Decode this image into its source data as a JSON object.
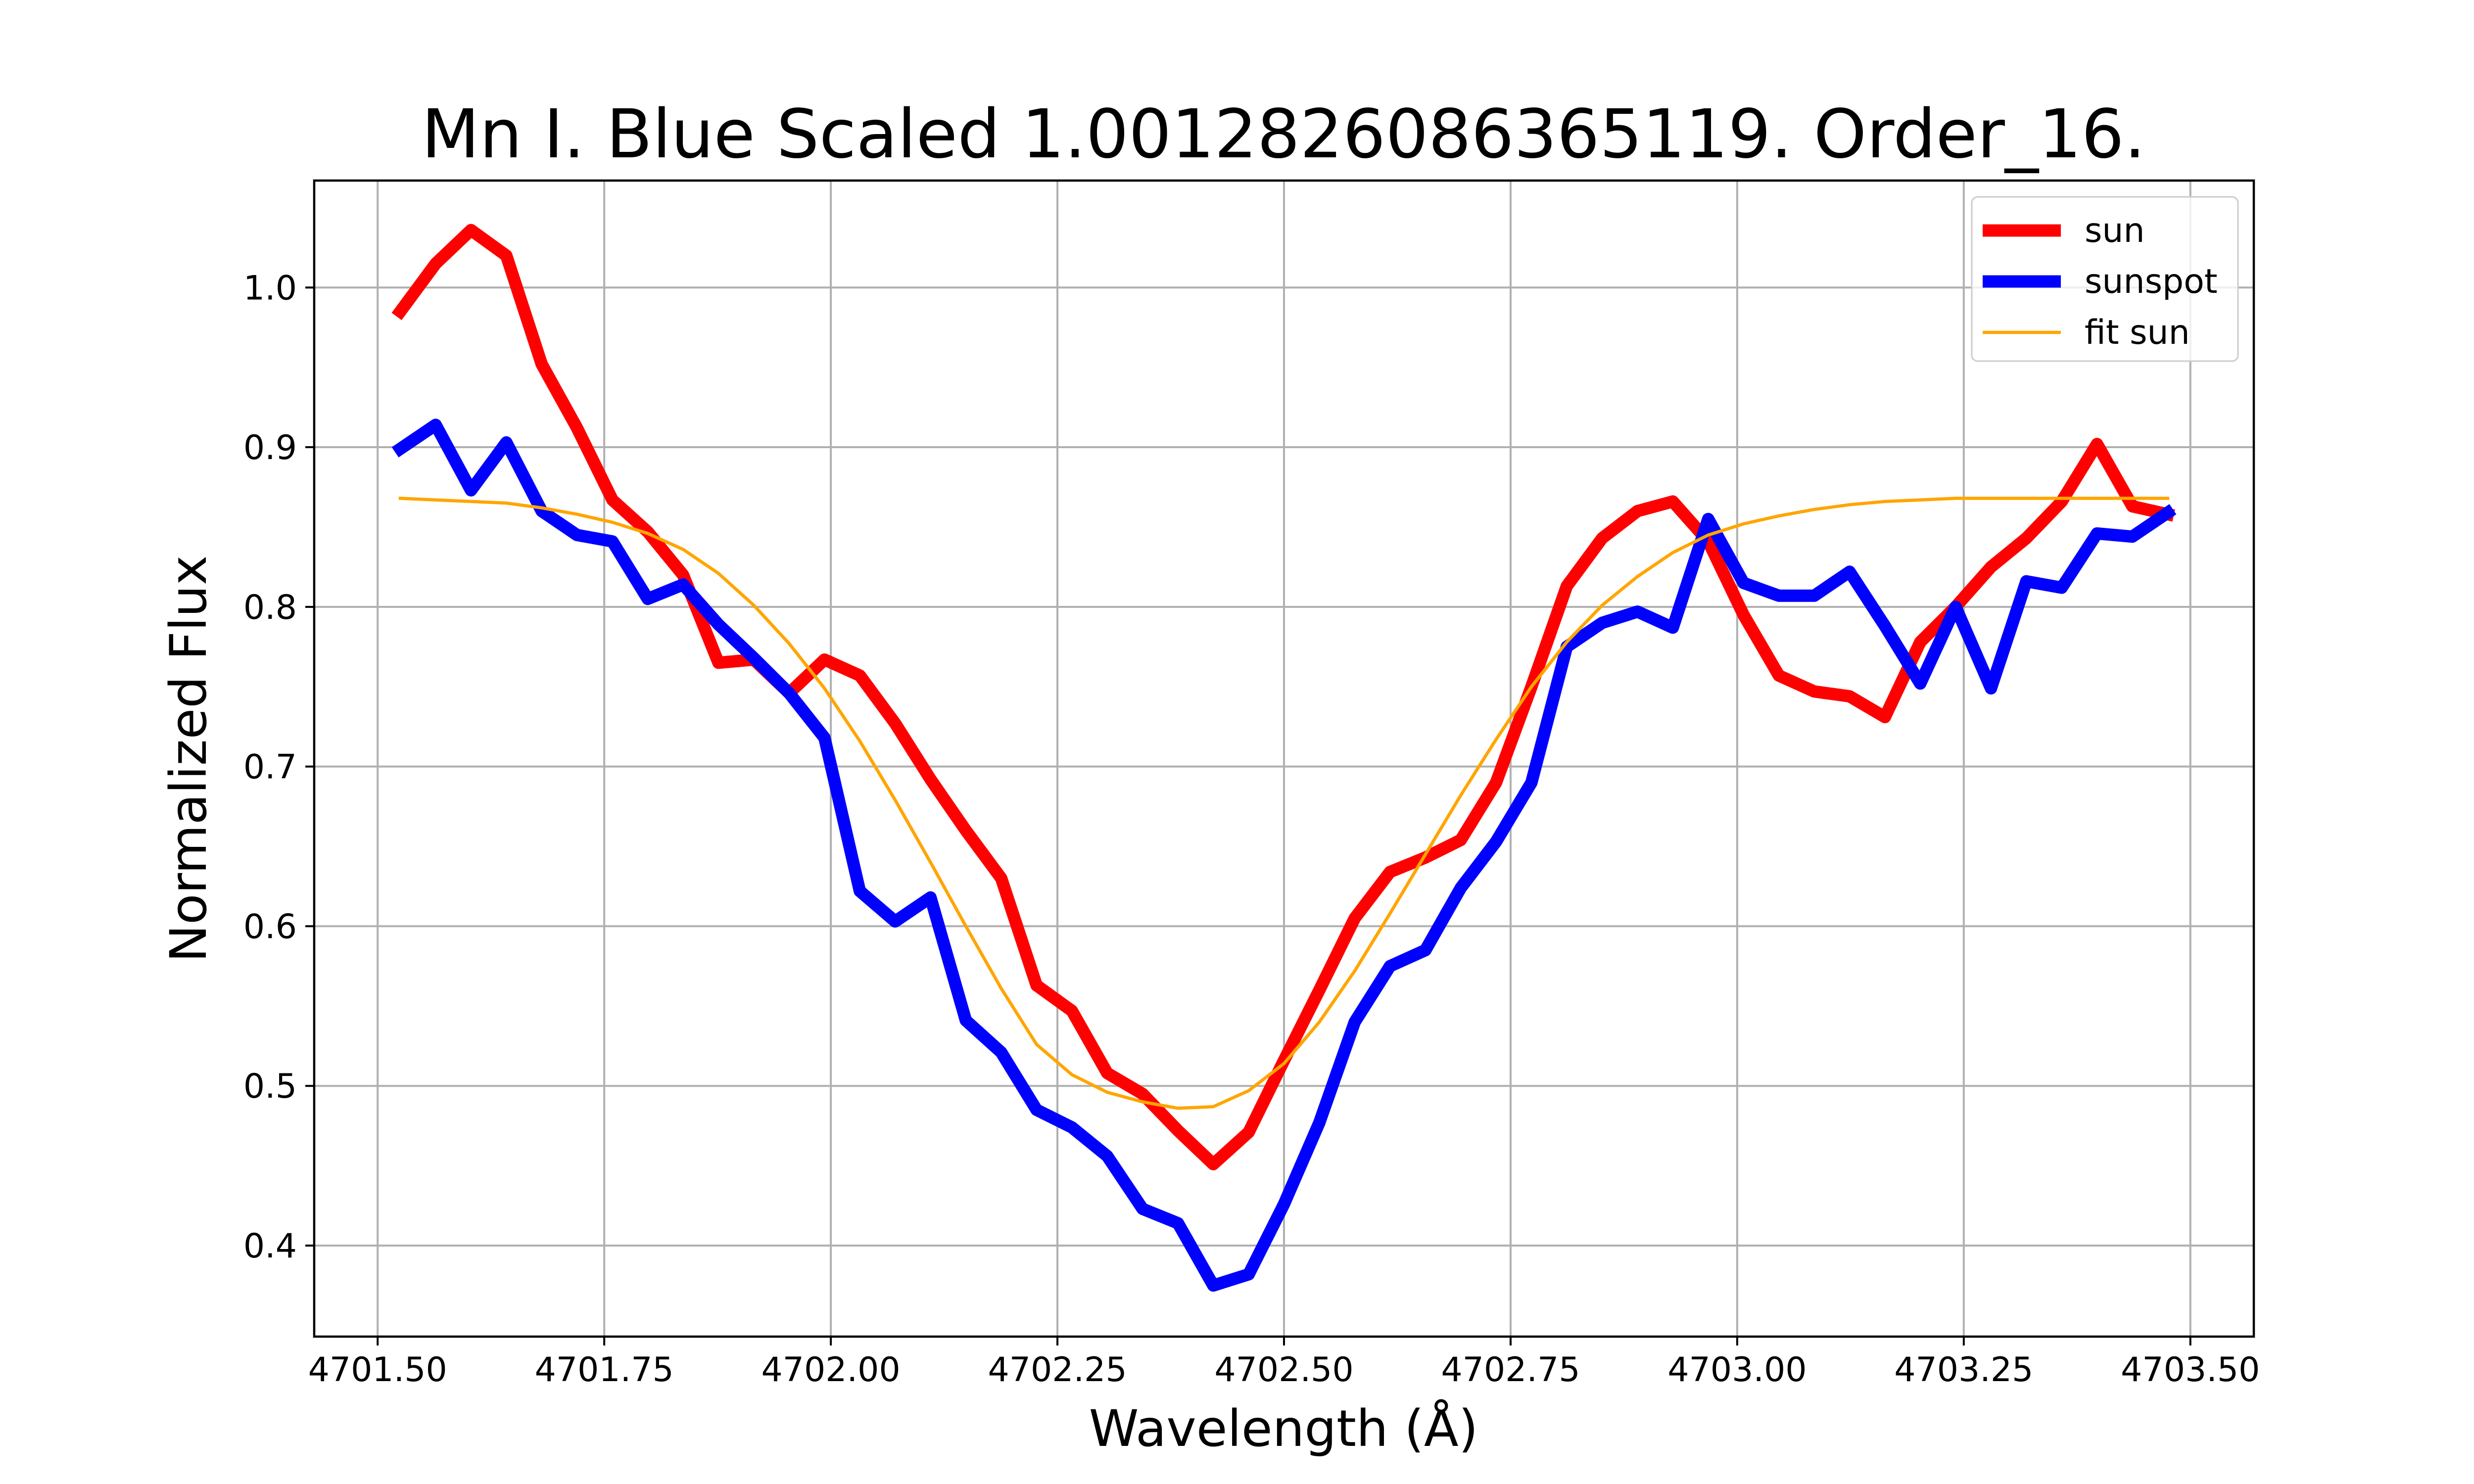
{
  "chart_data": {
    "type": "line",
    "title": "Mn I. Blue Scaled 1.0012826086365119. Order_16.",
    "xlabel": "Wavelength (Å)",
    "ylabel": "Normalized Flux",
    "xlim": [
      4701.43,
      4703.57
    ],
    "ylim": [
      0.343,
      1.067
    ],
    "xticks": [
      4701.5,
      4701.75,
      4702.0,
      4702.25,
      4702.5,
      4702.75,
      4703.0,
      4703.25,
      4703.5
    ],
    "xtick_labels": [
      "4701.50",
      "4701.75",
      "4702.00",
      "4702.25",
      "4702.50",
      "4702.75",
      "4703.00",
      "4703.25",
      "4703.50"
    ],
    "yticks": [
      0.4,
      0.5,
      0.6,
      0.7,
      0.8,
      0.9,
      1.0
    ],
    "ytick_labels": [
      "0.4",
      "0.5",
      "0.6",
      "0.7",
      "0.8",
      "0.9",
      "1.0"
    ],
    "grid": true,
    "legend_position": "top-right",
    "x": [
      4701.525,
      4701.564,
      4701.603,
      4701.642,
      4701.681,
      4701.72,
      4701.759,
      4701.798,
      4701.837,
      4701.876,
      4701.915,
      4701.954,
      4701.993,
      4702.032,
      4702.071,
      4702.11,
      4702.149,
      4702.188,
      4702.227,
      4702.266,
      4702.305,
      4702.344,
      4702.383,
      4702.422,
      4702.461,
      4702.5,
      4702.539,
      4702.578,
      4702.617,
      4702.656,
      4702.695,
      4702.734,
      4702.773,
      4702.812,
      4702.851,
      4702.89,
      4702.929,
      4702.968,
      4703.007,
      4703.046,
      4703.085,
      4703.124,
      4703.163,
      4703.202,
      4703.241,
      4703.28,
      4703.319,
      4703.358,
      4703.397,
      4703.436,
      4703.475
    ],
    "series": [
      {
        "name": "sun",
        "color": "#ff0000",
        "width": "thick",
        "values": [
          0.985,
          1.015,
          1.036,
          1.02,
          0.952,
          0.912,
          0.867,
          0.847,
          0.82,
          0.765,
          0.767,
          0.746,
          0.767,
          0.757,
          0.727,
          0.692,
          0.66,
          0.63,
          0.563,
          0.547,
          0.508,
          0.495,
          0.472,
          0.451,
          0.471,
          0.516,
          0.56,
          0.605,
          0.634,
          0.643,
          0.654,
          0.69,
          0.75,
          0.813,
          0.843,
          0.86,
          0.866,
          0.841,
          0.795,
          0.757,
          0.747,
          0.744,
          0.731,
          0.778,
          0.8,
          0.825,
          0.843,
          0.866,
          0.902,
          0.863,
          0.858
        ]
      },
      {
        "name": "sunspot",
        "color": "#0000ff",
        "width": "thick",
        "values": [
          0.899,
          0.914,
          0.873,
          0.903,
          0.86,
          0.845,
          0.841,
          0.805,
          0.814,
          0.789,
          0.768,
          0.746,
          0.718,
          0.622,
          0.603,
          0.618,
          0.541,
          0.521,
          0.485,
          0.474,
          0.456,
          0.423,
          0.414,
          0.375,
          0.382,
          0.426,
          0.477,
          0.54,
          0.575,
          0.585,
          0.624,
          0.653,
          0.69,
          0.775,
          0.79,
          0.797,
          0.787,
          0.855,
          0.815,
          0.807,
          0.807,
          0.822,
          0.788,
          0.752,
          0.8,
          0.749,
          0.816,
          0.812,
          0.846,
          0.844,
          0.859
        ]
      },
      {
        "name": "fit sun",
        "color": "#ffa500",
        "width": "thin",
        "values": [
          0.868,
          0.867,
          0.866,
          0.865,
          0.862,
          0.858,
          0.853,
          0.846,
          0.836,
          0.821,
          0.801,
          0.777,
          0.749,
          0.716,
          0.679,
          0.64,
          0.6,
          0.561,
          0.526,
          0.507,
          0.496,
          0.49,
          0.486,
          0.487,
          0.497,
          0.514,
          0.54,
          0.572,
          0.608,
          0.645,
          0.682,
          0.717,
          0.75,
          0.778,
          0.801,
          0.819,
          0.834,
          0.845,
          0.852,
          0.857,
          0.861,
          0.864,
          0.866,
          0.867,
          0.868,
          0.868,
          0.868,
          0.868,
          0.868,
          0.868,
          0.868
        ]
      }
    ]
  }
}
